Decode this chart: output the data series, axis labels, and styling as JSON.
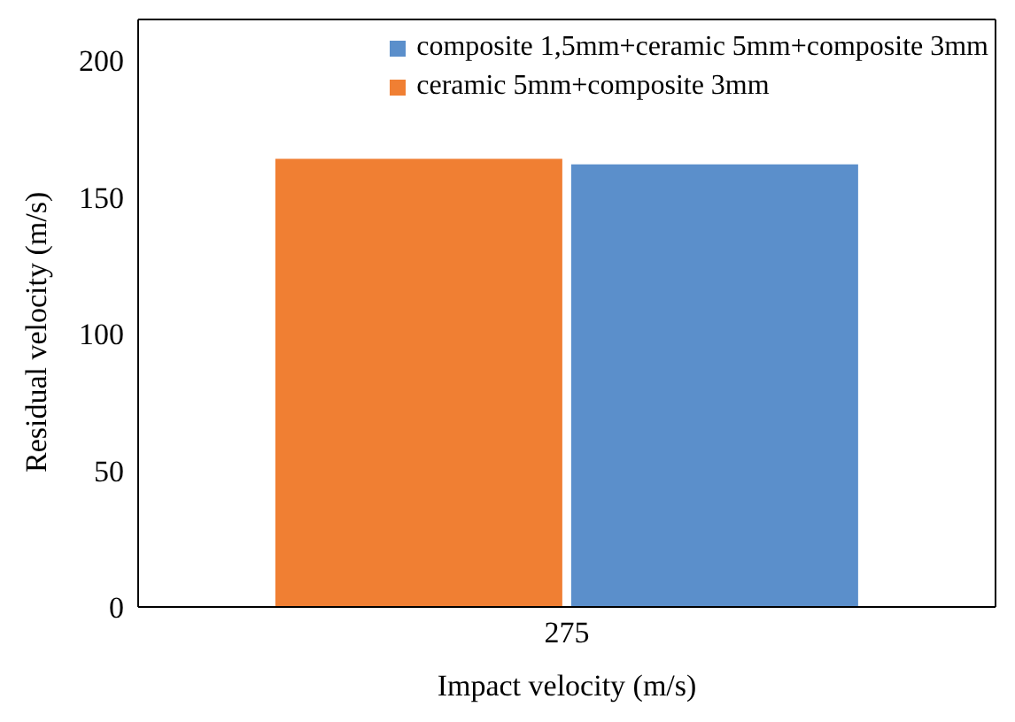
{
  "chart_data": {
    "type": "bar",
    "xlabel": "Impact velocity (m/s)",
    "ylabel": "Residual velocity (m/s)",
    "categories": [
      "275"
    ],
    "series": [
      {
        "name": "ceramic 5mm+composite 3mm",
        "color": "#f07f33",
        "values": [
          164
        ]
      },
      {
        "name": "composite 1,5mm+ceramic 5mm+composite 3mm",
        "color": "#5b8fcb",
        "values": [
          162
        ]
      }
    ],
    "ylim": [
      0,
      215
    ],
    "yticks": [
      0,
      50,
      100,
      150,
      200
    ],
    "grid": false,
    "legend": "top right"
  }
}
